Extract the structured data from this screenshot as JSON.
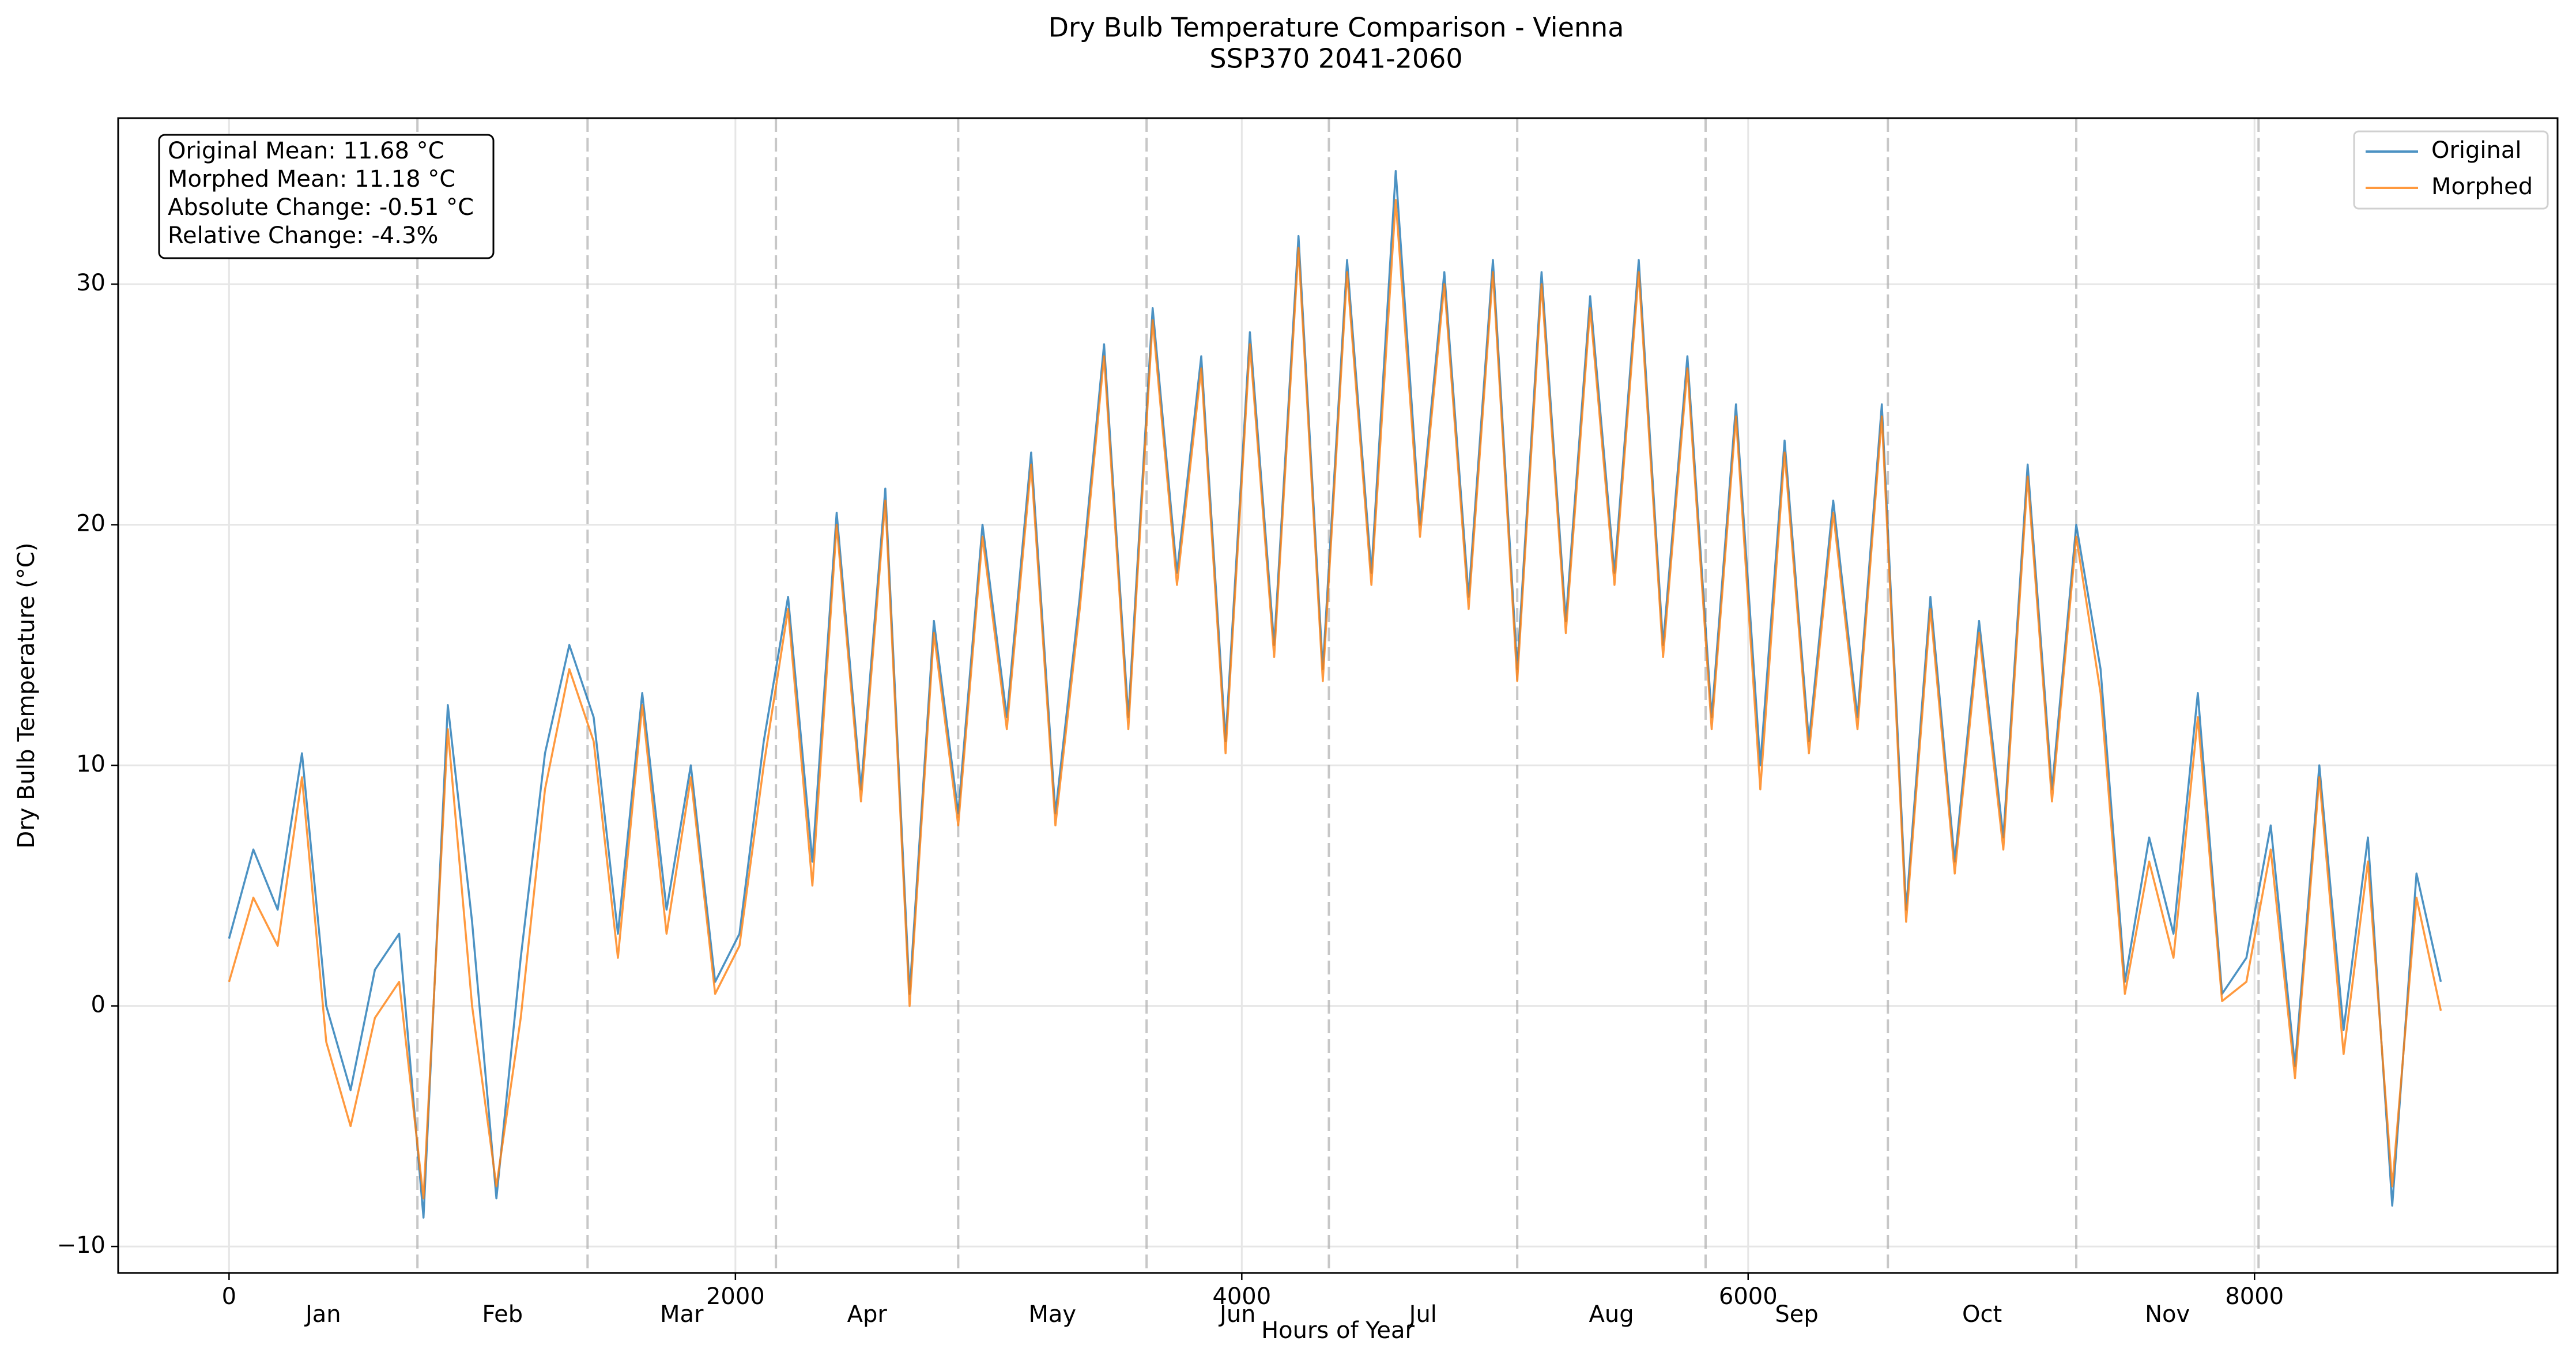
{
  "chart_data": {
    "type": "line",
    "title": "Dry Bulb Temperature Comparison - Vienna",
    "subtitle": "SSP370 2041-2060",
    "x_label": "Hours of Year",
    "y_label": "Dry Bulb Temperature (°C)",
    "xlim": [
      -438,
      9197
    ],
    "ylim": [
      -11.1,
      36.9
    ],
    "xticks": [
      0,
      2000,
      4000,
      6000,
      8000
    ],
    "yticks": [
      {
        "value": -10,
        "label": "−10"
      },
      0,
      10,
      20,
      30
    ],
    "grid": true,
    "legend": "upper right",
    "months": [
      "Jan",
      "Feb",
      "Mar",
      "Apr",
      "May",
      "Jun",
      "Jul",
      "Aug",
      "Sep",
      "Oct",
      "Nov"
    ],
    "month_boundaries": [
      744,
      1416,
      2160,
      2880,
      3624,
      4344,
      5088,
      5832,
      6552,
      7296,
      8016
    ],
    "annotation": [
      "Original Mean: 11.68 °C",
      "Morphed Mean: 11.18 °C",
      "Absolute Change: -0.51 °C",
      "Relative Change: -4.3%"
    ],
    "x": [
      0,
      96,
      192,
      288,
      384,
      480,
      576,
      672,
      768,
      864,
      960,
      1056,
      1152,
      1248,
      1344,
      1440,
      1536,
      1632,
      1728,
      1824,
      1920,
      2016,
      2112,
      2208,
      2304,
      2400,
      2496,
      2592,
      2688,
      2784,
      2880,
      2976,
      3072,
      3168,
      3264,
      3360,
      3456,
      3552,
      3648,
      3744,
      3840,
      3936,
      4032,
      4128,
      4224,
      4320,
      4416,
      4512,
      4608,
      4704,
      4800,
      4896,
      4992,
      5088,
      5184,
      5280,
      5376,
      5472,
      5568,
      5664,
      5760,
      5856,
      5952,
      6048,
      6144,
      6240,
      6336,
      6432,
      6528,
      6624,
      6720,
      6816,
      6912,
      7008,
      7104,
      7200,
      7296,
      7392,
      7488,
      7584,
      7680,
      7776,
      7872,
      7968,
      8064,
      8160,
      8256,
      8352,
      8448,
      8544,
      8640,
      8736
    ],
    "series": [
      {
        "name": "Original",
        "color": "#1f77b4",
        "values": [
          2.8,
          6.5,
          4.0,
          10.5,
          0.0,
          -3.5,
          1.5,
          3.0,
          -8.8,
          12.5,
          3.5,
          -8.0,
          2.0,
          10.5,
          15.0,
          12.0,
          3.0,
          13.0,
          4.0,
          10.0,
          1.0,
          3.0,
          11.0,
          17.0,
          6.0,
          20.5,
          9.0,
          21.5,
          0.5,
          16.0,
          8.0,
          20.0,
          12.0,
          23.0,
          8.0,
          17.0,
          27.5,
          12.0,
          29.0,
          18.0,
          27.0,
          11.0,
          28.0,
          15.0,
          32.0,
          14.0,
          31.0,
          18.0,
          34.7,
          20.0,
          30.5,
          17.0,
          31.0,
          14.0,
          30.5,
          16.0,
          29.5,
          18.0,
          31.0,
          15.0,
          27.0,
          12.0,
          25.0,
          10.0,
          23.5,
          11.0,
          21.0,
          12.0,
          25.0,
          4.0,
          17.0,
          6.0,
          16.0,
          7.0,
          22.5,
          9.0,
          20.0,
          14.0,
          1.0,
          7.0,
          3.0,
          13.0,
          0.5,
          2.0,
          7.5,
          -2.5,
          10.0,
          -1.0,
          7.0,
          -8.3,
          5.5,
          1.0
        ]
      },
      {
        "name": "Morphed",
        "color": "#ff7f0e",
        "values": [
          1.0,
          4.5,
          2.5,
          9.5,
          -1.5,
          -5.0,
          -0.5,
          1.0,
          -8.0,
          11.5,
          0.0,
          -7.5,
          -0.5,
          9.0,
          14.0,
          11.0,
          2.0,
          12.5,
          3.0,
          9.5,
          0.5,
          2.5,
          10.0,
          16.5,
          5.0,
          20.0,
          8.5,
          21.0,
          0.0,
          15.5,
          7.5,
          19.5,
          11.5,
          22.5,
          7.5,
          16.5,
          27.0,
          11.5,
          28.5,
          17.5,
          26.5,
          10.5,
          27.5,
          14.5,
          31.5,
          13.5,
          30.5,
          17.5,
          33.5,
          19.5,
          30.0,
          16.5,
          30.5,
          13.5,
          30.0,
          15.5,
          29.0,
          17.5,
          30.5,
          14.5,
          26.5,
          11.5,
          24.5,
          9.0,
          23.0,
          10.5,
          20.5,
          11.5,
          24.5,
          3.5,
          16.5,
          5.5,
          15.5,
          6.5,
          22.0,
          8.5,
          19.5,
          13.0,
          0.5,
          6.0,
          2.0,
          12.0,
          0.2,
          1.0,
          6.5,
          -3.0,
          9.5,
          -2.0,
          6.0,
          -7.5,
          4.5,
          -0.2
        ]
      }
    ]
  }
}
